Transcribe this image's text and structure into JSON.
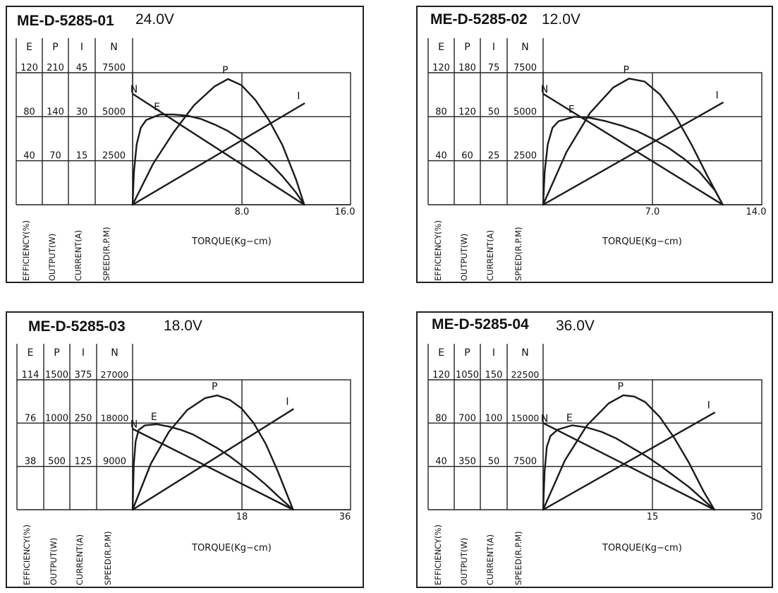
{
  "charts": [
    {
      "model": "ME-D-5285-01",
      "voltage": "24.0V",
      "col_headers": [
        "E",
        "P",
        "I",
        "N"
      ],
      "rows": [
        [
          "120",
          "210",
          "45",
          "7500"
        ],
        [
          "80",
          "140",
          "30",
          "5000"
        ],
        [
          "40",
          "70",
          "15",
          "2500"
        ]
      ],
      "x_ticks": [
        "8.0",
        "16.0"
      ],
      "axis_labels": [
        "EFFICIENCY(%)",
        "OUTPUT(W)",
        "CURRENT(A)",
        "SPEED(R.P.M)"
      ],
      "xlabel": "TORQUE(Kg−cm)",
      "curve_labels": [
        "N",
        "E",
        "P",
        "I"
      ]
    },
    {
      "model": "ME-D-5285-02",
      "voltage": "12.0V",
      "col_headers": [
        "E",
        "P",
        "I",
        "N"
      ],
      "rows": [
        [
          "120",
          "180",
          "75",
          "7500"
        ],
        [
          "80",
          "120",
          "50",
          "5000"
        ],
        [
          "40",
          "60",
          "25",
          "2500"
        ]
      ],
      "x_ticks": [
        "7.0",
        "14.0"
      ],
      "axis_labels": [
        "EFFICIENCY(%)",
        "OUTPUT(W)",
        "CURRENT(A)",
        "SPEED(R.P.M)"
      ],
      "xlabel": "TORQUE(Kg−cm)",
      "curve_labels": [
        "N",
        "E",
        "P",
        "I"
      ]
    },
    {
      "model": "ME-D-5285-03",
      "voltage": "18.0V",
      "col_headers": [
        "E",
        "P",
        "I",
        "N"
      ],
      "rows": [
        [
          "114",
          "1500",
          "375",
          "27000"
        ],
        [
          "76",
          "1000",
          "250",
          "18000"
        ],
        [
          "38",
          "500",
          "125",
          "9000"
        ]
      ],
      "x_ticks": [
        "18",
        "36"
      ],
      "axis_labels": [
        "EFFICIENCY(%)",
        "OUTPUT(W)",
        "CURRENT(A)",
        "SPEED(R.P.M)"
      ],
      "xlabel": "TORQUE(Kg−cm)",
      "curve_labels": [
        "N",
        "E",
        "P",
        "I"
      ]
    },
    {
      "model": "ME-D-5285-04",
      "voltage": "36.0V",
      "col_headers": [
        "E",
        "P",
        "I",
        "N"
      ],
      "rows": [
        [
          "120",
          "1050",
          "150",
          "22500"
        ],
        [
          "80",
          "700",
          "100",
          "15000"
        ],
        [
          "40",
          "350",
          "50",
          "7500"
        ]
      ],
      "x_ticks": [
        "15",
        "30"
      ],
      "axis_labels": [
        "EFFICIENCY(%)",
        "OUTPUT(W)",
        "CURRENT(A)",
        "SPEED(R.P.M)"
      ],
      "xlabel": "TORQUE(Kg−cm)",
      "curve_labels": [
        "N",
        "E",
        "P",
        "I"
      ]
    }
  ],
  "chart_data": [
    {
      "type": "line",
      "title": "ME-D-5285-01 24.0V",
      "xlabel": "TORQUE(Kg-cm)",
      "xlim": [
        0,
        16
      ],
      "y_axes": {
        "E": [
          0,
          120
        ],
        "P": [
          0,
          210
        ],
        "I": [
          0,
          45
        ],
        "N": [
          0,
          7500
        ]
      },
      "series": [
        {
          "name": "N",
          "axis": "N",
          "x": [
            0,
            12.6
          ],
          "values": [
            6300,
            0
          ]
        },
        {
          "name": "I",
          "axis": "I",
          "x": [
            0,
            12.6
          ],
          "values": [
            0,
            34.5
          ]
        },
        {
          "name": "P",
          "axis": "P",
          "x": [
            0,
            1.5,
            3,
            4.5,
            6,
            7,
            8,
            9,
            10,
            11,
            12,
            12.6
          ],
          "values": [
            0,
            65,
            115,
            158,
            188,
            200,
            190,
            167,
            135,
            95,
            40,
            0
          ]
        },
        {
          "name": "E",
          "axis": "E",
          "x": [
            0,
            0.1,
            0.3,
            0.6,
            1,
            2,
            3,
            4,
            5,
            6,
            7,
            8,
            9,
            10,
            11,
            12,
            12.6
          ],
          "values": [
            0,
            30,
            55,
            70,
            77,
            82,
            82,
            81,
            78,
            73,
            67,
            59,
            50,
            39,
            26,
            11,
            0
          ]
        }
      ]
    },
    {
      "type": "line",
      "title": "ME-D-5285-02 12.0V",
      "xlabel": "TORQUE(Kg-cm)",
      "xlim": [
        0,
        14
      ],
      "y_axes": {
        "E": [
          0,
          120
        ],
        "P": [
          0,
          180
        ],
        "I": [
          0,
          75
        ],
        "N": [
          0,
          7500
        ]
      },
      "series": [
        {
          "name": "N",
          "axis": "N",
          "x": [
            0,
            11.5
          ],
          "values": [
            6300,
            0
          ]
        },
        {
          "name": "I",
          "axis": "I",
          "x": [
            0,
            11.5
          ],
          "values": [
            0,
            58
          ]
        },
        {
          "name": "P",
          "axis": "P",
          "x": [
            0,
            1.5,
            3,
            4.5,
            5.5,
            6.5,
            7.5,
            8.5,
            9.5,
            10.5,
            11.5
          ],
          "values": [
            0,
            72,
            125,
            160,
            172,
            168,
            150,
            120,
            82,
            40,
            0
          ]
        },
        {
          "name": "E",
          "axis": "E",
          "x": [
            0,
            0.1,
            0.3,
            0.6,
            1,
            2,
            3,
            4,
            5,
            6,
            7,
            8,
            9,
            10,
            11,
            11.5
          ],
          "values": [
            0,
            30,
            55,
            70,
            76,
            80,
            79,
            76,
            72,
            67,
            60,
            52,
            42,
            30,
            13,
            0
          ]
        }
      ]
    },
    {
      "type": "line",
      "title": "ME-D-5285-03 18.0V",
      "xlabel": "TORQUE(Kg-cm)",
      "xlim": [
        0,
        36
      ],
      "y_axes": {
        "E": [
          0,
          114
        ],
        "P": [
          0,
          1500
        ],
        "I": [
          0,
          375
        ],
        "N": [
          0,
          27000
        ]
      },
      "series": [
        {
          "name": "N",
          "axis": "N",
          "x": [
            0,
            26.5
          ],
          "values": [
            16800,
            0
          ]
        },
        {
          "name": "I",
          "axis": "I",
          "x": [
            0,
            26.5
          ],
          "values": [
            0,
            290
          ]
        },
        {
          "name": "P",
          "axis": "P",
          "x": [
            0,
            3,
            6,
            9,
            12,
            14,
            16,
            18,
            20,
            22,
            24,
            26.5
          ],
          "values": [
            0,
            530,
            900,
            1150,
            1290,
            1320,
            1270,
            1170,
            1000,
            760,
            440,
            0
          ]
        },
        {
          "name": "E",
          "axis": "E",
          "x": [
            0,
            0.2,
            0.5,
            1,
            2,
            4,
            6,
            8,
            10,
            12,
            14,
            16,
            18,
            20,
            22,
            24,
            26.5
          ],
          "values": [
            0,
            40,
            60,
            70,
            74,
            75,
            73,
            70,
            66,
            60,
            54,
            47,
            39,
            31,
            22,
            12,
            0
          ]
        }
      ]
    },
    {
      "type": "line",
      "title": "ME-D-5285-04 36.0V",
      "xlabel": "TORQUE(Kg-cm)",
      "xlim": [
        0,
        30
      ],
      "y_axes": {
        "E": [
          0,
          120
        ],
        "P": [
          0,
          1050
        ],
        "I": [
          0,
          150
        ],
        "N": [
          0,
          22500
        ]
      },
      "series": [
        {
          "name": "N",
          "axis": "N",
          "x": [
            0,
            23.5
          ],
          "values": [
            15000,
            0
          ]
        },
        {
          "name": "I",
          "axis": "I",
          "x": [
            0,
            23.5
          ],
          "values": [
            0,
            112
          ]
        },
        {
          "name": "P",
          "axis": "P",
          "x": [
            0,
            3,
            6,
            9,
            11,
            12.5,
            14,
            16,
            18,
            20,
            22,
            23.5
          ],
          "values": [
            0,
            400,
            680,
            860,
            925,
            915,
            870,
            750,
            580,
            380,
            150,
            0
          ]
        },
        {
          "name": "E",
          "axis": "E",
          "x": [
            0,
            0.2,
            0.5,
            1,
            2,
            4,
            6,
            8,
            10,
            12,
            14,
            16,
            18,
            20,
            22,
            23.5
          ],
          "values": [
            0,
            35,
            58,
            68,
            74,
            78,
            76,
            72,
            66,
            58,
            50,
            41,
            31,
            21,
            9,
            0
          ]
        }
      ]
    }
  ]
}
